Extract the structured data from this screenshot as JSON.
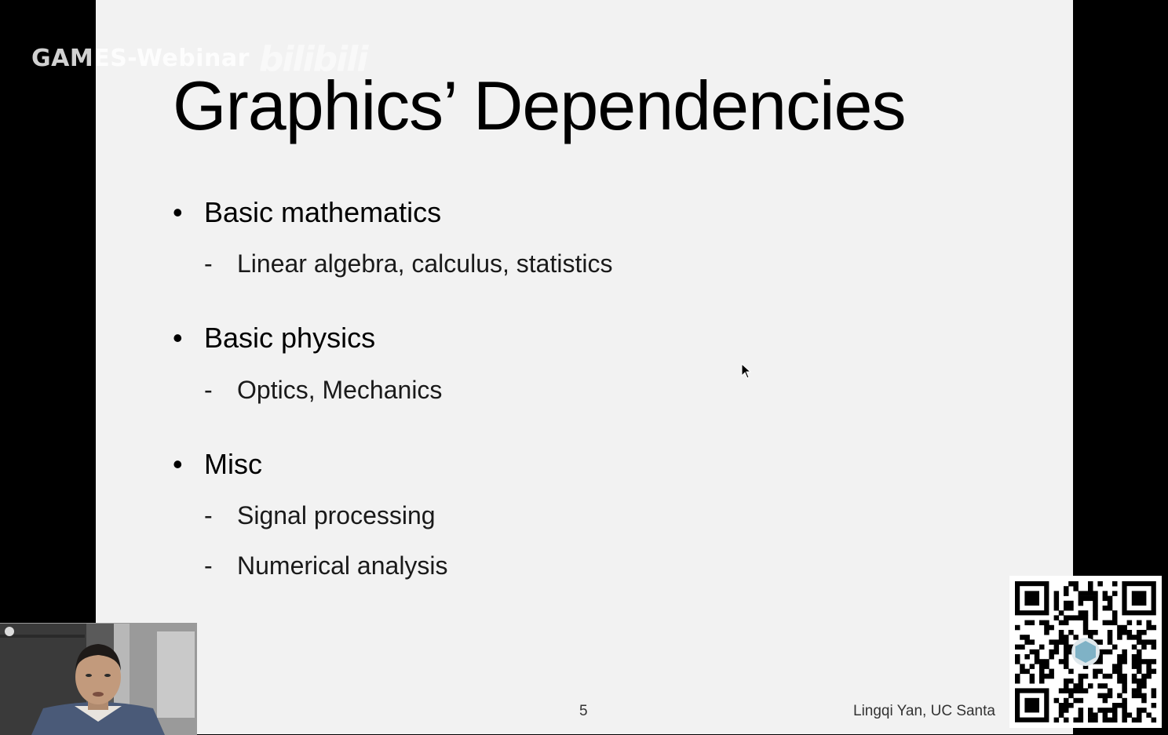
{
  "watermark": {
    "text": "GAMES-Webinar",
    "platform_logo": "bilibili"
  },
  "slide": {
    "title": "Graphics’ Dependencies",
    "bullets": [
      {
        "label": "Basic mathematics",
        "subs": [
          "Linear algebra, calculus, statistics"
        ]
      },
      {
        "label": "Basic physics",
        "subs": [
          "Optics, Mechanics"
        ]
      },
      {
        "label": "Misc",
        "subs": [
          "Signal processing",
          "Numerical analysis"
        ]
      }
    ],
    "bullet_glyph": "•",
    "dash_glyph": "-",
    "page_number": "5",
    "footer": "Lingqi Yan, UC Santa"
  },
  "colors": {
    "slide_bg": "#f2f2f2",
    "frame_bg": "#000000",
    "text": "#000000"
  },
  "icons": {
    "cursor": "mouse-pointer-icon",
    "qr": "qr-code-icon",
    "webcam": "presenter-webcam"
  }
}
